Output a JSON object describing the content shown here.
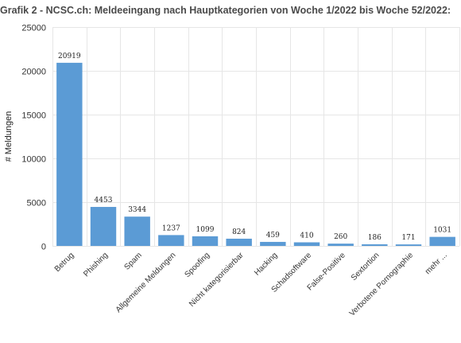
{
  "chart_data": {
    "type": "bar",
    "title": "Grafik 2 - NCSC.ch: Meldeeingang nach Hauptkategorien von Woche 1/2022 bis Woche 52/2022:",
    "xlabel": "",
    "ylabel": "# Meldungen",
    "ylim": [
      0,
      25000
    ],
    "yticks": [
      0,
      5000,
      10000,
      15000,
      20000,
      25000
    ],
    "grid": true,
    "legend": "none",
    "bar_color": "#5b9bd5",
    "categories": [
      "Betrug",
      "Phishing",
      "Spam",
      "Allgemeine Meldungen",
      "Spoofing",
      "Nicht kategorisierbar",
      "Hacking",
      "Schadsoftware",
      "False-Positive",
      "Sextortion",
      "Verbotene Pornographie",
      "mehr ..."
    ],
    "values": [
      20919,
      4453,
      3344,
      1237,
      1099,
      824,
      459,
      410,
      260,
      186,
      171,
      1031
    ],
    "data_labels": [
      "20919",
      "4453",
      "3344",
      "1237",
      "1099",
      "824",
      "459",
      "410",
      "260",
      "186",
      "171",
      "1031"
    ]
  }
}
